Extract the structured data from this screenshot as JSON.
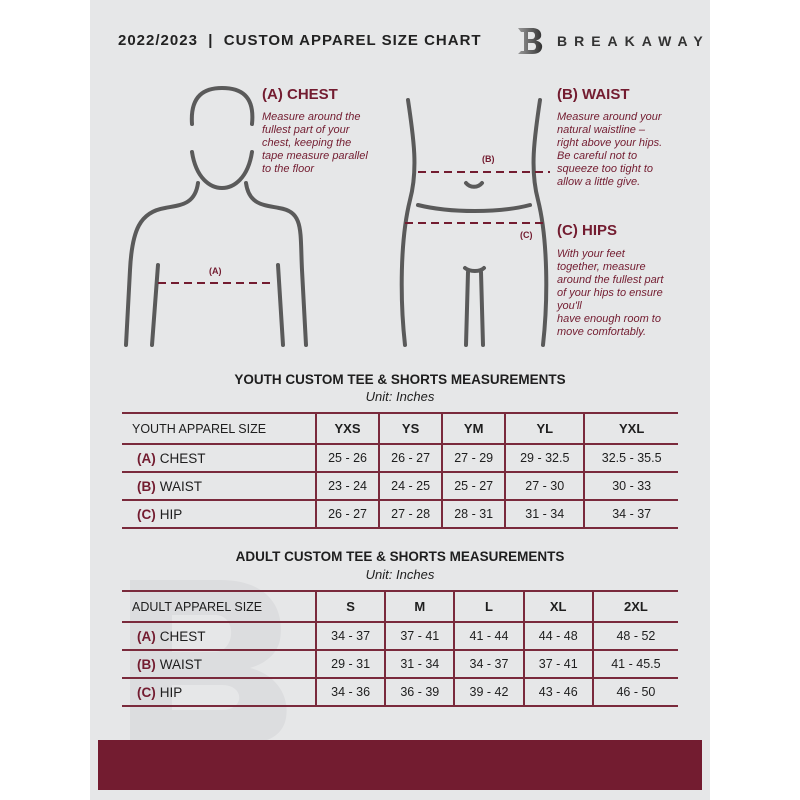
{
  "header": {
    "title": "2022/2023  |  CUSTOM APPAREL SIZE CHART",
    "brand": "BREAKAWAY",
    "logo_letter": "B"
  },
  "measures": {
    "chest": {
      "heading": "(A) CHEST",
      "label": "(A)",
      "lines": [
        "Measure around the",
        "fullest part of your",
        "chest, keeping the",
        "tape measure parallel",
        "to the floor"
      ]
    },
    "waist": {
      "heading": "(B) WAIST",
      "label": "(B)",
      "lines": [
        "Measure around your",
        "natural waistline –",
        "right above your hips.",
        "Be careful not to",
        "squeeze too tight to",
        "allow a little give."
      ]
    },
    "hips": {
      "heading": "(C) HIPS",
      "label": "(C)",
      "lines": [
        "With your feet",
        "together, measure",
        "around the fullest part",
        "of your hips to ensure",
        "you'll",
        "have enough room to",
        "move comfortably."
      ]
    }
  },
  "youth": {
    "title": "YOUTH CUSTOM TEE & SHORTS MEASUREMENTS",
    "unit": "Unit: Inches",
    "size_header": "YOUTH APPAREL SIZE",
    "sizes": [
      "YXS",
      "YS",
      "YM",
      "YL",
      "YXL"
    ],
    "rows": [
      {
        "code": "(A)",
        "name": "CHEST",
        "values": [
          "25 - 26",
          "26 - 27",
          "27 - 29",
          "29 - 32.5",
          "32.5 - 35.5"
        ]
      },
      {
        "code": "(B)",
        "name": "WAIST",
        "values": [
          "23 - 24",
          "24 - 25",
          "25 - 27",
          "27 - 30",
          "30 - 33"
        ]
      },
      {
        "code": "(C)",
        "name": "HIP",
        "values": [
          "26 - 27",
          "27 - 28",
          "28 - 31",
          "31 - 34",
          "34 - 37"
        ]
      }
    ]
  },
  "adult": {
    "title": "ADULT CUSTOM TEE & SHORTS MEASUREMENTS",
    "unit": "Unit: Inches",
    "size_header": "ADULT APPAREL SIZE",
    "sizes": [
      "S",
      "M",
      "L",
      "XL",
      "2XL"
    ],
    "rows": [
      {
        "code": "(A)",
        "name": "CHEST",
        "values": [
          "34 - 37",
          "37 - 41",
          "41 - 44",
          "44 - 48",
          "48 - 52"
        ]
      },
      {
        "code": "(B)",
        "name": "WAIST",
        "values": [
          "29 - 31",
          "31 - 34",
          "34 - 37",
          "37 - 41",
          "41 - 45.5"
        ]
      },
      {
        "code": "(C)",
        "name": "HIP",
        "values": [
          "34 - 36",
          "36 - 39",
          "39 - 42",
          "43 - 46",
          "46 - 50"
        ]
      }
    ]
  },
  "colors": {
    "accent": "#731c30",
    "background": "#e6e7e8",
    "outline": "#555555"
  }
}
